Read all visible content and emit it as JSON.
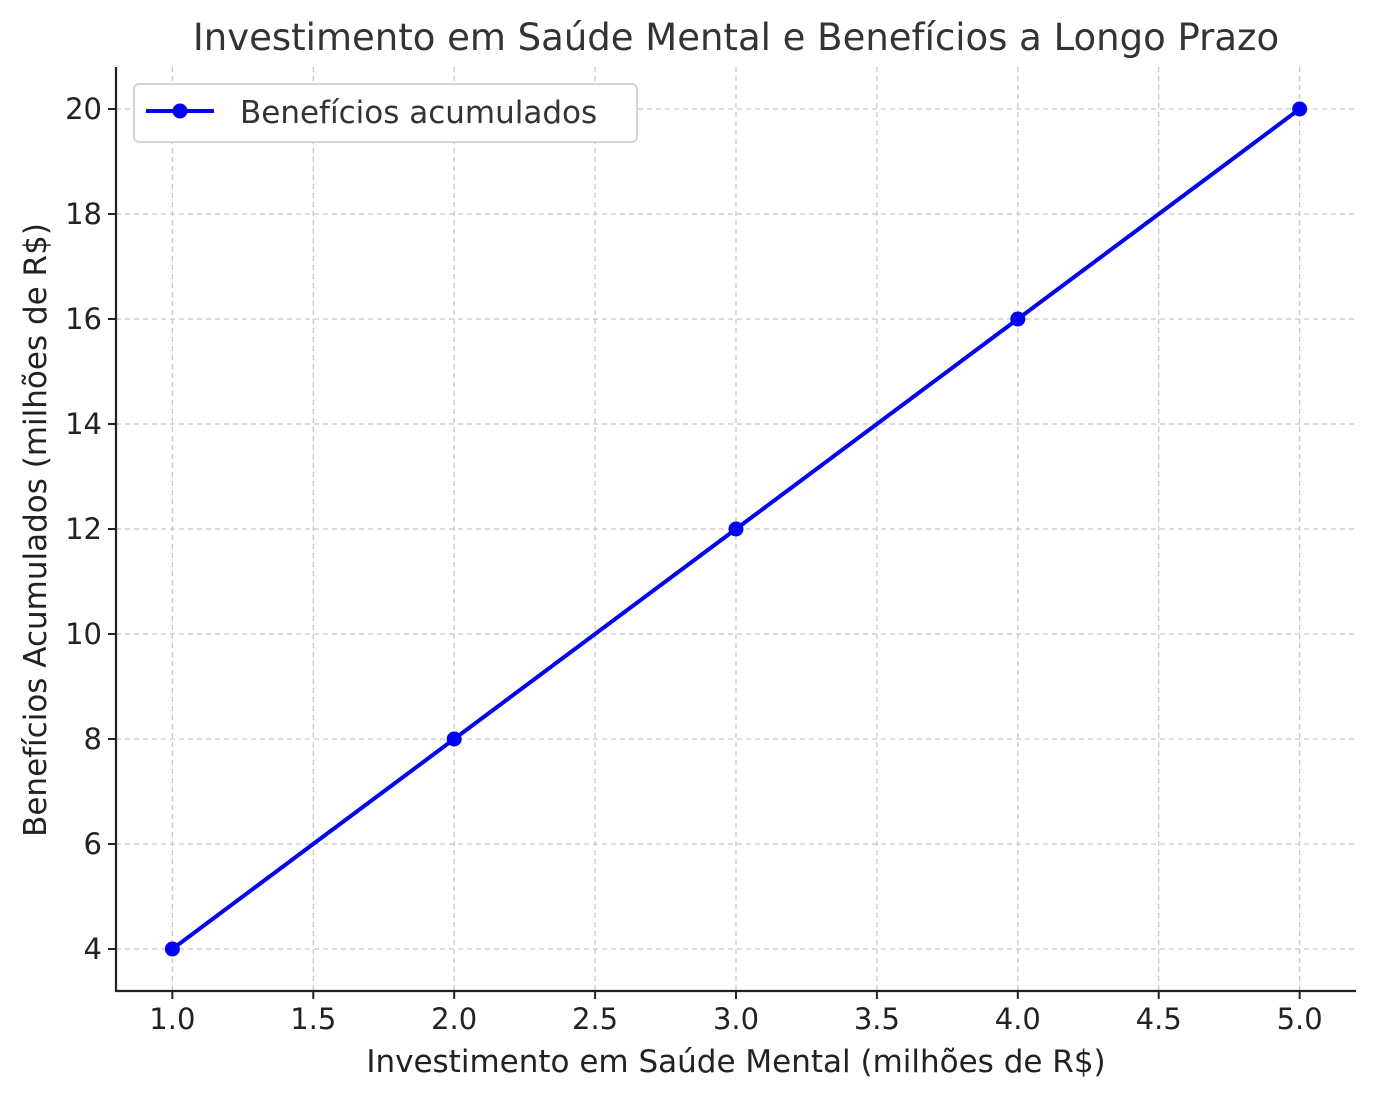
{
  "chart_data": {
    "type": "line",
    "title": "Investimento em Saúde Mental e Benefícios a Longo Prazo",
    "xlabel": "Investimento em Saúde Mental (milhões de R$)",
    "ylabel": "Benefícios Acumulados (milhões de R$)",
    "x": [
      1.0,
      2.0,
      3.0,
      4.0,
      5.0
    ],
    "series": [
      {
        "name": "Benefícios acumulados",
        "values": [
          4,
          8,
          12,
          16,
          20
        ],
        "color": "#0000ff",
        "marker": "circle"
      }
    ],
    "xlim": [
      0.8,
      5.2
    ],
    "ylim": [
      3.2,
      20.8
    ],
    "xticks": [
      1.0,
      1.5,
      2.0,
      2.5,
      3.0,
      3.5,
      4.0,
      4.5,
      5.0
    ],
    "xtick_labels": [
      "1.0",
      "1.5",
      "2.0",
      "2.5",
      "3.0",
      "3.5",
      "4.0",
      "4.5",
      "5.0"
    ],
    "yticks": [
      4,
      6,
      8,
      10,
      12,
      14,
      16,
      18,
      20
    ],
    "ytick_labels": [
      "4",
      "6",
      "8",
      "10",
      "12",
      "14",
      "16",
      "18",
      "20"
    ],
    "grid": true,
    "legend_position": "top-left"
  }
}
